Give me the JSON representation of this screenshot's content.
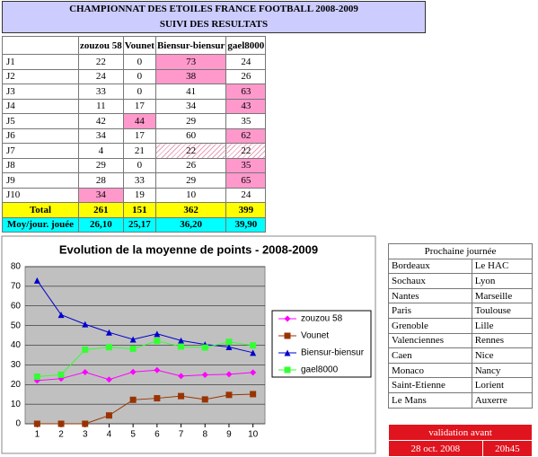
{
  "header": {
    "title": "CHAMPIONNAT DES ETOILES FRANCE FOOTBALL 2008-2009",
    "subtitle": "SUIVI DES RESULTATS"
  },
  "table": {
    "columns": [
      "zouzou 58",
      "Vounet",
      "Biensur-biensur",
      "gael8000"
    ],
    "rows": [
      [
        "J1",
        "22",
        "0",
        "73",
        "24"
      ],
      [
        "J2",
        "24",
        "0",
        "38",
        "26"
      ],
      [
        "J3",
        "33",
        "0",
        "41",
        "63"
      ],
      [
        "J4",
        "11",
        "17",
        "34",
        "43"
      ],
      [
        "J5",
        "42",
        "44",
        "29",
        "35"
      ],
      [
        "J6",
        "34",
        "17",
        "60",
        "62"
      ],
      [
        "J7",
        "4",
        "21",
        "22",
        "22"
      ],
      [
        "J8",
        "29",
        "0",
        "26",
        "35"
      ],
      [
        "J9",
        "28",
        "33",
        "29",
        "65"
      ],
      [
        "J10",
        "34",
        "19",
        "10",
        "24"
      ]
    ],
    "highlighted": [
      [
        0,
        3
      ],
      [
        1,
        3
      ],
      [
        2,
        4
      ],
      [
        3,
        4
      ],
      [
        4,
        2
      ],
      [
        5,
        4
      ],
      [
        7,
        4
      ],
      [
        8,
        4
      ],
      [
        9,
        1
      ]
    ],
    "hatched": [
      [
        6,
        3
      ],
      [
        6,
        4
      ]
    ],
    "total": {
      "label": "Total",
      "values": [
        "261",
        "151",
        "362",
        "399"
      ]
    },
    "average": {
      "label": "Moy/jour. jouée",
      "values": [
        "26,10",
        "25,17",
        "36,20",
        "39,90"
      ]
    }
  },
  "chart_data": {
    "type": "line",
    "title": "Evolution de la moyenne de points - 2008-2009",
    "x": [
      1,
      2,
      3,
      4,
      5,
      6,
      7,
      8,
      9,
      10
    ],
    "xlim": [
      0.5,
      10.5
    ],
    "xticks": [
      1,
      2,
      3,
      4,
      5,
      6,
      7,
      8,
      9,
      10
    ],
    "ylim": [
      0,
      80
    ],
    "yticks": [
      0,
      10,
      20,
      30,
      40,
      50,
      60,
      70,
      80
    ],
    "plot_background": "#c0c0c0",
    "series": [
      {
        "name": "zouzou 58",
        "color": "#ff00ff",
        "marker": "diamond",
        "values": [
          22,
          23,
          26.3,
          22.5,
          26.4,
          27.3,
          24.3,
          24.9,
          25.2,
          26.1
        ]
      },
      {
        "name": "Vounet",
        "color": "#993300",
        "marker": "square",
        "values": [
          0,
          0,
          0,
          4.25,
          12.2,
          13,
          14.1,
          12.4,
          14.7,
          15.1
        ]
      },
      {
        "name": "Biensur-biensur",
        "color": "#0000cc",
        "marker": "triangle",
        "values": [
          73,
          55.5,
          50.7,
          46.5,
          43,
          45.8,
          42.4,
          40.4,
          39.1,
          36.2
        ]
      },
      {
        "name": "gael8000",
        "color": "#33ff33",
        "marker": "square",
        "values": [
          24,
          25,
          37.7,
          39,
          38.2,
          42.2,
          39.3,
          38.8,
          41.7,
          39.9
        ]
      }
    ]
  },
  "fixtures": {
    "title": "Prochaine journée",
    "matches": [
      [
        "Bordeaux",
        "Le HAC"
      ],
      [
        "Sochaux",
        "Lyon"
      ],
      [
        "Nantes",
        "Marseille"
      ],
      [
        "Paris",
        "Toulouse"
      ],
      [
        "Grenoble",
        "Lille"
      ],
      [
        "Valenciennes",
        "Rennes"
      ],
      [
        "Caen",
        "Nice"
      ],
      [
        "Monaco",
        "Nancy"
      ],
      [
        "Saint-Etienne",
        "Lorient"
      ],
      [
        "Le Mans",
        "Auxerre"
      ]
    ]
  },
  "validation": {
    "label": "validation avant",
    "date": "28 oct. 2008",
    "time": "20h45"
  }
}
